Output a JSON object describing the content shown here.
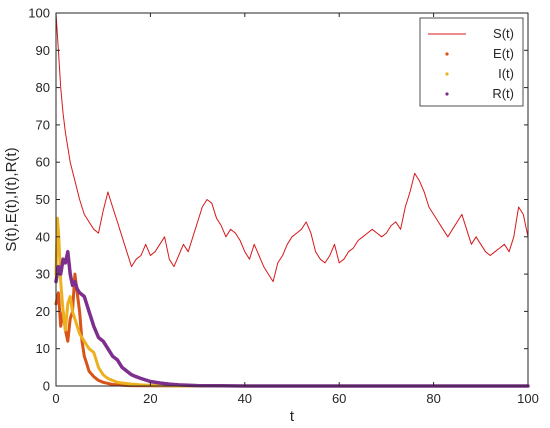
{
  "chart_data": {
    "type": "line",
    "title": "",
    "xlabel": "t",
    "ylabel": "S(t),E(t),I(t),R(t)",
    "xlim": [
      0,
      100
    ],
    "ylim": [
      0,
      100
    ],
    "xticks": [
      "0",
      "20",
      "40",
      "60",
      "80",
      "100"
    ],
    "yticks": [
      "0",
      "10",
      "20",
      "30",
      "40",
      "50",
      "60",
      "70",
      "80",
      "90",
      "100"
    ],
    "grid": false,
    "legend_position": "top-right",
    "series": [
      {
        "name": "S(t)",
        "color": "#d7191c",
        "x": [
          0,
          0.5,
          1,
          1.5,
          2,
          2.5,
          3,
          4,
          5,
          6,
          7,
          8,
          9,
          10,
          11,
          12,
          13,
          14,
          15,
          16,
          17,
          18,
          19,
          20,
          21,
          22,
          23,
          24,
          25,
          26,
          27,
          28,
          29,
          30,
          31,
          32,
          33,
          34,
          35,
          36,
          37,
          38,
          39,
          40,
          41,
          42,
          43,
          44,
          45,
          46,
          47,
          48,
          49,
          50,
          51,
          52,
          53,
          54,
          55,
          56,
          57,
          58,
          59,
          60,
          61,
          62,
          63,
          64,
          65,
          66,
          67,
          68,
          69,
          70,
          71,
          72,
          73,
          74,
          75,
          76,
          77,
          78,
          79,
          80,
          81,
          82,
          83,
          84,
          85,
          86,
          87,
          88,
          89,
          90,
          91,
          92,
          93,
          94,
          95,
          96,
          97,
          98,
          99,
          100
        ],
        "y": [
          100,
          90,
          80,
          73,
          68,
          64,
          60,
          55,
          50,
          46,
          44,
          42,
          41,
          47,
          52,
          48,
          44,
          40,
          36,
          32,
          34,
          35,
          38,
          35,
          36,
          38,
          40,
          34,
          32,
          35,
          38,
          36,
          40,
          44,
          48,
          50,
          49,
          45,
          43,
          40,
          42,
          41,
          39,
          36,
          34,
          38,
          35,
          32,
          30,
          28,
          33,
          35,
          38,
          40,
          41,
          42,
          44,
          41,
          36,
          34,
          33,
          35,
          38,
          33,
          34,
          36,
          37,
          39,
          40,
          41,
          42,
          41,
          40,
          41,
          43,
          44,
          42,
          48,
          52,
          57,
          55,
          52,
          48,
          46,
          44,
          42,
          40,
          42,
          44,
          46,
          42,
          38,
          40,
          38,
          36,
          35,
          36,
          37,
          38,
          36,
          40,
          48,
          46,
          40
        ]
      },
      {
        "name": "E(t)",
        "color": "#d95319",
        "x": [
          0,
          0.5,
          1,
          1.5,
          2,
          2.5,
          3,
          3.5,
          4,
          4.5,
          5,
          5.5,
          6,
          6.5,
          7,
          8,
          9,
          10,
          11,
          12,
          14,
          16,
          20,
          30,
          40,
          60,
          80,
          100
        ],
        "y": [
          22,
          25,
          16,
          20,
          15,
          12,
          18,
          20,
          30,
          25,
          20,
          12,
          8,
          6,
          4,
          2.5,
          1.5,
          1,
          0.7,
          0.4,
          0.2,
          0.1,
          0.05,
          0,
          0,
          0,
          0,
          0
        ]
      },
      {
        "name": "I(t)",
        "color": "#edb120",
        "x": [
          0,
          0.3,
          0.6,
          1,
          1.5,
          2,
          2.5,
          3,
          3.5,
          4,
          5,
          6,
          7,
          8,
          9,
          10,
          11,
          12,
          13,
          14,
          16,
          18,
          20,
          25,
          30,
          40,
          60,
          80,
          100
        ],
        "y": [
          30,
          45,
          40,
          28,
          20,
          15,
          22,
          24,
          20,
          18,
          14,
          12,
          10,
          9,
          5,
          3,
          2,
          1.5,
          1,
          0.8,
          0.5,
          0.3,
          0.2,
          0.05,
          0,
          0,
          0,
          0,
          0
        ]
      },
      {
        "name": "R(t)",
        "color": "#7e2f8e",
        "x": [
          0,
          0.5,
          1,
          1.5,
          2,
          2.5,
          3,
          3.5,
          4,
          4.5,
          5,
          6,
          7,
          8,
          9,
          10,
          11,
          12,
          13,
          14,
          15,
          16,
          17,
          18,
          19,
          20,
          22,
          24,
          26,
          28,
          30,
          35,
          40,
          50,
          60,
          80,
          100
        ],
        "y": [
          28,
          32,
          30,
          34,
          33,
          36,
          30,
          27,
          28,
          26,
          25,
          24,
          20,
          16,
          13,
          12,
          10,
          8,
          7,
          5,
          4,
          3,
          2.5,
          2,
          1.6,
          1.2,
          0.8,
          0.5,
          0.3,
          0.2,
          0.1,
          0.05,
          0,
          0,
          0,
          0,
          0
        ]
      }
    ]
  }
}
